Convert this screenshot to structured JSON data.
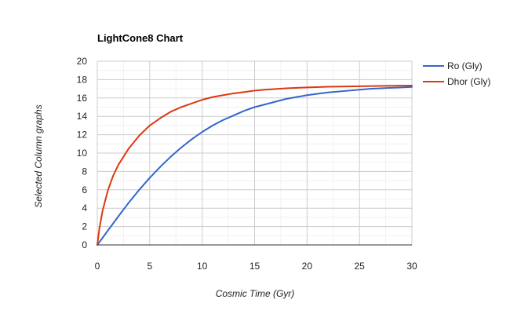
{
  "chart_data": {
    "type": "line",
    "title": "LightCone8 Chart",
    "xlabel": "Cosmic Time (Gyr)",
    "ylabel": "Selected Column graphs",
    "xlim": [
      0,
      30
    ],
    "ylim": [
      0,
      20
    ],
    "x_ticks": [
      "0",
      "5",
      "10",
      "15",
      "20",
      "25",
      "30"
    ],
    "y_ticks": [
      "0",
      "2",
      "4",
      "6",
      "8",
      "10",
      "12",
      "14",
      "16",
      "18",
      "20"
    ],
    "grid": true,
    "legend_position": "right",
    "series": [
      {
        "name": "Ro (Gly)",
        "color": "#3366cc",
        "x": [
          0,
          1,
          2,
          3,
          4,
          5,
          6,
          7,
          8,
          9,
          10,
          11,
          12,
          13,
          14,
          15,
          16,
          17,
          18,
          19,
          20,
          22,
          24,
          26,
          28,
          30
        ],
        "y": [
          0,
          1.55,
          3.1,
          4.6,
          6.0,
          7.3,
          8.5,
          9.6,
          10.6,
          11.5,
          12.3,
          13.0,
          13.6,
          14.1,
          14.6,
          15.0,
          15.3,
          15.6,
          15.9,
          16.1,
          16.3,
          16.6,
          16.8,
          17.0,
          17.1,
          17.2
        ]
      },
      {
        "name": "Dhor (Gly)",
        "color": "#dc3912",
        "x": [
          0,
          0.2,
          0.5,
          1,
          1.5,
          2,
          3,
          4,
          5,
          6,
          7,
          8,
          9,
          10,
          11,
          12,
          13,
          14,
          15,
          16,
          18,
          20,
          22,
          25,
          28,
          30
        ],
        "y": [
          0,
          1.8,
          3.7,
          5.9,
          7.5,
          8.7,
          10.5,
          11.9,
          13.0,
          13.8,
          14.5,
          15.0,
          15.4,
          15.8,
          16.1,
          16.3,
          16.5,
          16.65,
          16.8,
          16.9,
          17.05,
          17.15,
          17.22,
          17.28,
          17.33,
          17.35
        ]
      }
    ]
  }
}
